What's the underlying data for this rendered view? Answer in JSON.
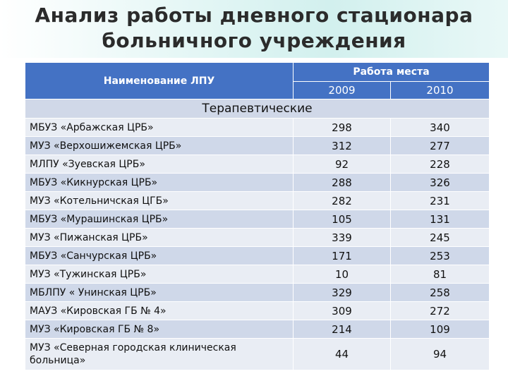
{
  "title": {
    "line1": "Анализ работы дневного стационара",
    "line2": "больничного учреждения"
  },
  "table": {
    "header": {
      "name_col": "Наименование ЛПУ",
      "group": "Работа места",
      "years": [
        "2009",
        "2010"
      ]
    },
    "section": "Терапевтические",
    "rows": [
      {
        "name": "МБУЗ «Арбажская ЦРБ»",
        "v2009": "298",
        "v2010": "340"
      },
      {
        "name": "МУЗ «Верхошижемская ЦРБ»",
        "v2009": "312",
        "v2010": "277"
      },
      {
        "name": "МЛПУ «Зуевская ЦРБ»",
        "v2009": "92",
        "v2010": "228"
      },
      {
        "name": "МБУЗ «Кикнурская ЦРБ»",
        "v2009": "288",
        "v2010": "326"
      },
      {
        "name": "МУЗ «Котельничская ЦГБ»",
        "v2009": "282",
        "v2010": "231"
      },
      {
        "name": "МБУЗ «Мурашинская ЦРБ»",
        "v2009": "105",
        "v2010": "131"
      },
      {
        "name": "МУЗ «Пижанская ЦРБ»",
        "v2009": "339",
        "v2010": "245"
      },
      {
        "name": "МБУЗ «Санчурская ЦРБ»",
        "v2009": "171",
        "v2010": "253"
      },
      {
        "name": "МУЗ «Тужинская ЦРБ»",
        "v2009": "10",
        "v2010": "81"
      },
      {
        "name": "МБЛПУ « Унинская ЦРБ»",
        "v2009": "329",
        "v2010": "258"
      },
      {
        "name": "МАУЗ «Кировская ГБ № 4»",
        "v2009": "309",
        "v2010": "272"
      },
      {
        "name": "МУЗ «Кировская ГБ № 8»",
        "v2009": "214",
        "v2010": "109"
      },
      {
        "name": "МУЗ «Северная городская клиническая больница»",
        "v2009": "44",
        "v2010": "94"
      }
    ]
  }
}
